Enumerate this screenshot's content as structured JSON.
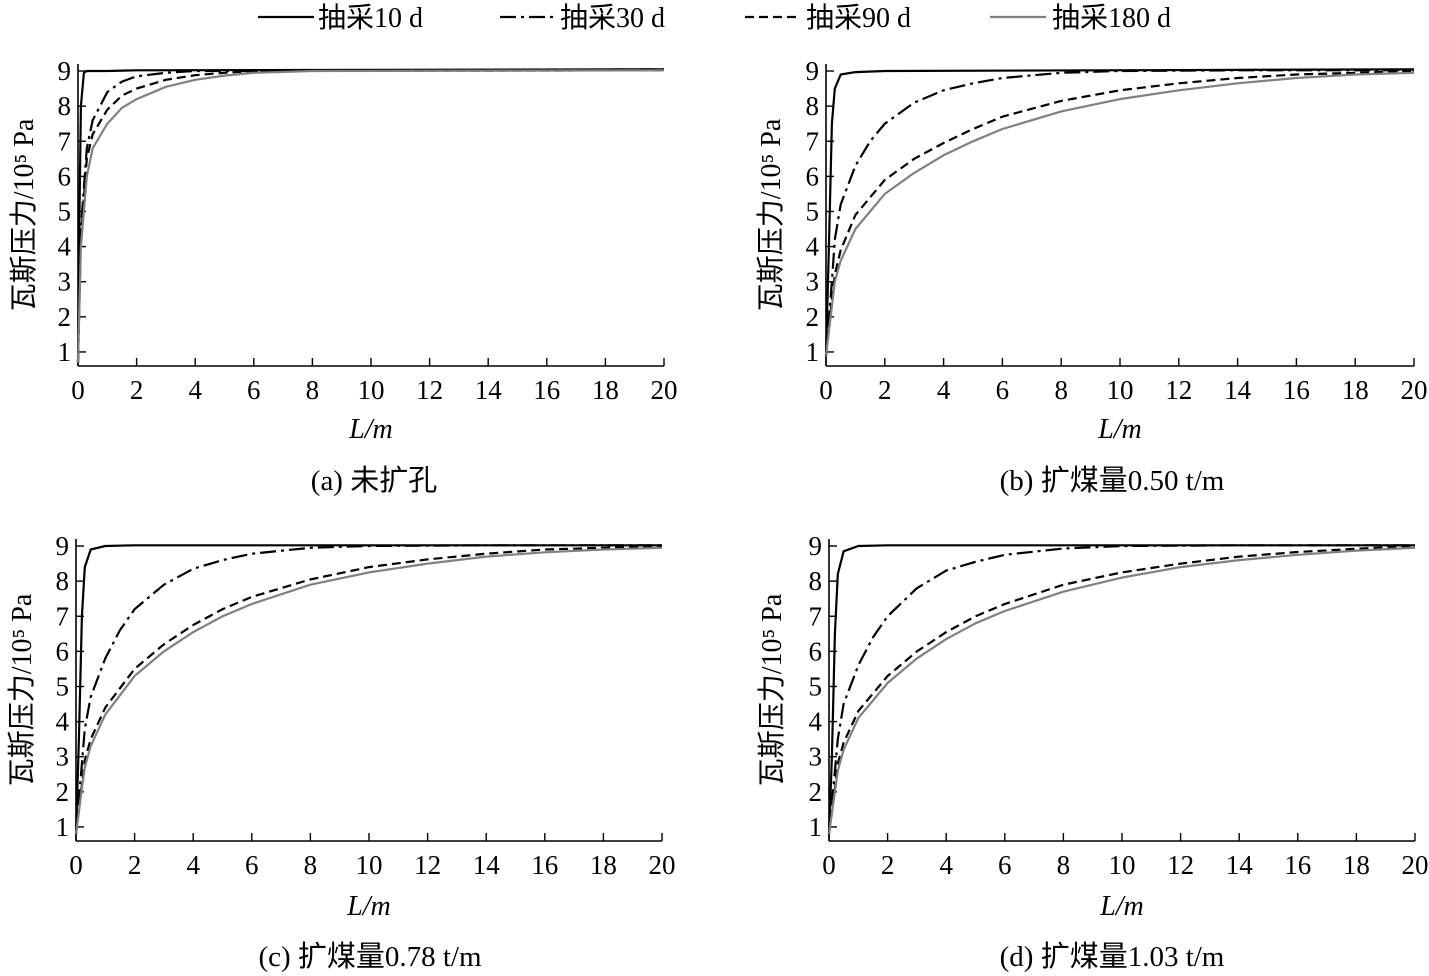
{
  "legend": {
    "entries": [
      {
        "label": "抽采10 d",
        "color": "#000000",
        "dash": "solid"
      },
      {
        "label": "抽采30 d",
        "color": "#000000",
        "dash": "dashdot"
      },
      {
        "label": "抽采90 d",
        "color": "#000000",
        "dash": "dashed"
      },
      {
        "label": "抽采180 d",
        "color": "#808080",
        "dash": "solid"
      }
    ]
  },
  "chart_data": [
    {
      "type": "line",
      "caption": "(a)  未扩孔",
      "xlabel": "L/m",
      "ylabel": "瓦斯压力/10⁵ Pa",
      "xlim": [
        0,
        20
      ],
      "ylim": [
        0.6,
        9.2
      ],
      "xticks": [
        0,
        2,
        4,
        6,
        8,
        10,
        12,
        14,
        16,
        18,
        20
      ],
      "yticks": [
        1,
        2,
        3,
        4,
        5,
        6,
        7,
        8,
        9
      ],
      "series": [
        {
          "name": "抽采10 d",
          "x": [
            0,
            0.05,
            0.1,
            0.2,
            0.3,
            0.5,
            1,
            2,
            20
          ],
          "y": [
            0.7,
            5.0,
            8.0,
            8.95,
            9.0,
            9.0,
            9.0,
            9.02,
            9.05
          ]
        },
        {
          "name": "抽采30 d",
          "x": [
            0,
            0.1,
            0.3,
            0.5,
            1,
            1.5,
            2,
            3,
            4,
            6,
            20
          ],
          "y": [
            0.7,
            4.5,
            6.8,
            7.6,
            8.4,
            8.7,
            8.85,
            8.95,
            9.0,
            9.0,
            9.05
          ]
        },
        {
          "name": "抽采90 d",
          "x": [
            0,
            0.1,
            0.3,
            0.5,
            1,
            1.5,
            2,
            3,
            4,
            5,
            6,
            20
          ],
          "y": [
            0.7,
            4.2,
            6.5,
            7.2,
            7.9,
            8.3,
            8.5,
            8.75,
            8.88,
            8.95,
            9.0,
            9.02
          ]
        },
        {
          "name": "抽采180 d",
          "x": [
            0,
            0.1,
            0.3,
            0.5,
            1,
            1.5,
            2,
            3,
            4,
            5,
            6,
            8,
            20
          ],
          "y": [
            0.7,
            4.0,
            6.0,
            6.8,
            7.5,
            7.95,
            8.2,
            8.55,
            8.75,
            8.87,
            8.95,
            9.0,
            9.02
          ]
        }
      ]
    },
    {
      "type": "line",
      "caption": "(b)  扩煤量0.50 t/m",
      "xlabel": "L/m",
      "ylabel": "瓦斯压力/10⁵ Pa",
      "xlim": [
        0,
        20
      ],
      "ylim": [
        0.6,
        9.2
      ],
      "xticks": [
        0,
        2,
        4,
        6,
        8,
        10,
        12,
        14,
        16,
        18,
        20
      ],
      "yticks": [
        1,
        2,
        3,
        4,
        5,
        6,
        7,
        8,
        9
      ],
      "series": [
        {
          "name": "抽采10 d",
          "x": [
            0,
            0.1,
            0.2,
            0.3,
            0.5,
            1,
            2,
            20
          ],
          "y": [
            0.9,
            4.0,
            7.5,
            8.5,
            8.9,
            8.97,
            9.0,
            9.05
          ]
        },
        {
          "name": "抽采30 d",
          "x": [
            0,
            0.2,
            0.3,
            0.5,
            1,
            1.5,
            2,
            3,
            4,
            5,
            6,
            8,
            10,
            14,
            20
          ],
          "y": [
            0.9,
            3.0,
            4.2,
            5.2,
            6.3,
            7.0,
            7.5,
            8.1,
            8.45,
            8.65,
            8.8,
            8.95,
            9.0,
            9.02,
            9.02
          ]
        },
        {
          "name": "抽采90 d",
          "x": [
            0,
            0.2,
            0.3,
            0.5,
            1,
            2,
            3,
            4,
            5,
            6,
            8,
            10,
            12,
            14,
            16,
            18,
            20
          ],
          "y": [
            0.9,
            2.5,
            3.2,
            3.9,
            4.9,
            5.9,
            6.5,
            6.95,
            7.35,
            7.7,
            8.15,
            8.45,
            8.65,
            8.8,
            8.9,
            8.95,
            9.0
          ]
        },
        {
          "name": "抽采180 d",
          "x": [
            0,
            0.2,
            0.3,
            0.5,
            1,
            2,
            3,
            4,
            5,
            6,
            8,
            10,
            12,
            14,
            16,
            18,
            20
          ],
          "y": [
            0.9,
            2.3,
            3.0,
            3.6,
            4.5,
            5.5,
            6.1,
            6.6,
            7.0,
            7.35,
            7.85,
            8.2,
            8.45,
            8.65,
            8.8,
            8.9,
            8.95
          ]
        }
      ]
    },
    {
      "type": "line",
      "caption": "(c)  扩煤量0.78 t/m",
      "xlabel": "L/m",
      "ylabel": "瓦斯压力/10⁵ Pa",
      "xlim": [
        0,
        20
      ],
      "ylim": [
        0.6,
        9.2
      ],
      "xticks": [
        0,
        2,
        4,
        6,
        8,
        10,
        12,
        14,
        16,
        18,
        20
      ],
      "yticks": [
        1,
        2,
        3,
        4,
        5,
        6,
        7,
        8,
        9
      ],
      "series": [
        {
          "name": "抽采10 d",
          "x": [
            0,
            0.1,
            0.2,
            0.3,
            0.5,
            1,
            2,
            20
          ],
          "y": [
            0.8,
            3.5,
            7.0,
            8.4,
            8.9,
            9.0,
            9.02,
            9.02
          ]
        },
        {
          "name": "抽采30 d",
          "x": [
            0,
            0.2,
            0.3,
            0.5,
            1,
            1.5,
            2,
            3,
            4,
            5,
            6,
            8,
            10,
            14,
            20
          ],
          "y": [
            0.8,
            2.8,
            3.8,
            4.7,
            5.8,
            6.6,
            7.2,
            7.9,
            8.35,
            8.6,
            8.78,
            8.95,
            9.0,
            9.02,
            9.02
          ]
        },
        {
          "name": "抽采90 d",
          "x": [
            0,
            0.2,
            0.3,
            0.5,
            1,
            2,
            3,
            4,
            5,
            6,
            8,
            10,
            12,
            14,
            16,
            18,
            20
          ],
          "y": [
            0.8,
            2.2,
            2.9,
            3.5,
            4.4,
            5.5,
            6.2,
            6.75,
            7.2,
            7.55,
            8.05,
            8.4,
            8.62,
            8.78,
            8.9,
            8.95,
            9.0
          ]
        },
        {
          "name": "抽采180 d",
          "x": [
            0,
            0.2,
            0.3,
            0.5,
            1,
            2,
            3,
            4,
            5,
            6,
            8,
            10,
            12,
            14,
            16,
            18,
            20
          ],
          "y": [
            0.8,
            2.1,
            2.7,
            3.3,
            4.2,
            5.3,
            6.0,
            6.55,
            7.0,
            7.35,
            7.9,
            8.25,
            8.5,
            8.7,
            8.82,
            8.9,
            8.95
          ]
        }
      ]
    },
    {
      "type": "line",
      "caption": "(d)  扩煤量1.03 t/m",
      "xlabel": "L/m",
      "ylabel": "瓦斯压力/10⁵ Pa",
      "xlim": [
        0,
        20
      ],
      "ylim": [
        0.6,
        9.2
      ],
      "xticks": [
        0,
        2,
        4,
        6,
        8,
        10,
        12,
        14,
        16,
        18,
        20
      ],
      "yticks": [
        1,
        2,
        3,
        4,
        5,
        6,
        7,
        8,
        9
      ],
      "series": [
        {
          "name": "抽采10 d",
          "x": [
            0,
            0.1,
            0.2,
            0.3,
            0.5,
            1,
            2,
            20
          ],
          "y": [
            0.8,
            3.0,
            6.5,
            8.2,
            8.85,
            9.0,
            9.02,
            9.02
          ]
        },
        {
          "name": "抽采30 d",
          "x": [
            0,
            0.2,
            0.3,
            0.5,
            1,
            1.5,
            2,
            3,
            4,
            5,
            6,
            8,
            10,
            14,
            20
          ],
          "y": [
            0.8,
            2.6,
            3.5,
            4.5,
            5.6,
            6.4,
            7.0,
            7.8,
            8.3,
            8.55,
            8.75,
            8.93,
            9.0,
            9.02,
            9.02
          ]
        },
        {
          "name": "抽采90 d",
          "x": [
            0,
            0.2,
            0.3,
            0.5,
            1,
            2,
            3,
            4,
            5,
            6,
            8,
            10,
            12,
            14,
            16,
            18,
            20
          ],
          "y": [
            0.8,
            2.1,
            2.8,
            3.4,
            4.3,
            5.3,
            6.0,
            6.55,
            7.0,
            7.35,
            7.9,
            8.25,
            8.5,
            8.7,
            8.83,
            8.92,
            9.0
          ]
        },
        {
          "name": "抽采180 d",
          "x": [
            0,
            0.2,
            0.3,
            0.5,
            1,
            2,
            3,
            4,
            5,
            6,
            8,
            10,
            12,
            14,
            16,
            18,
            20
          ],
          "y": [
            0.8,
            2.0,
            2.6,
            3.2,
            4.1,
            5.1,
            5.8,
            6.35,
            6.8,
            7.15,
            7.7,
            8.1,
            8.4,
            8.6,
            8.75,
            8.87,
            8.95
          ]
        }
      ]
    }
  ]
}
